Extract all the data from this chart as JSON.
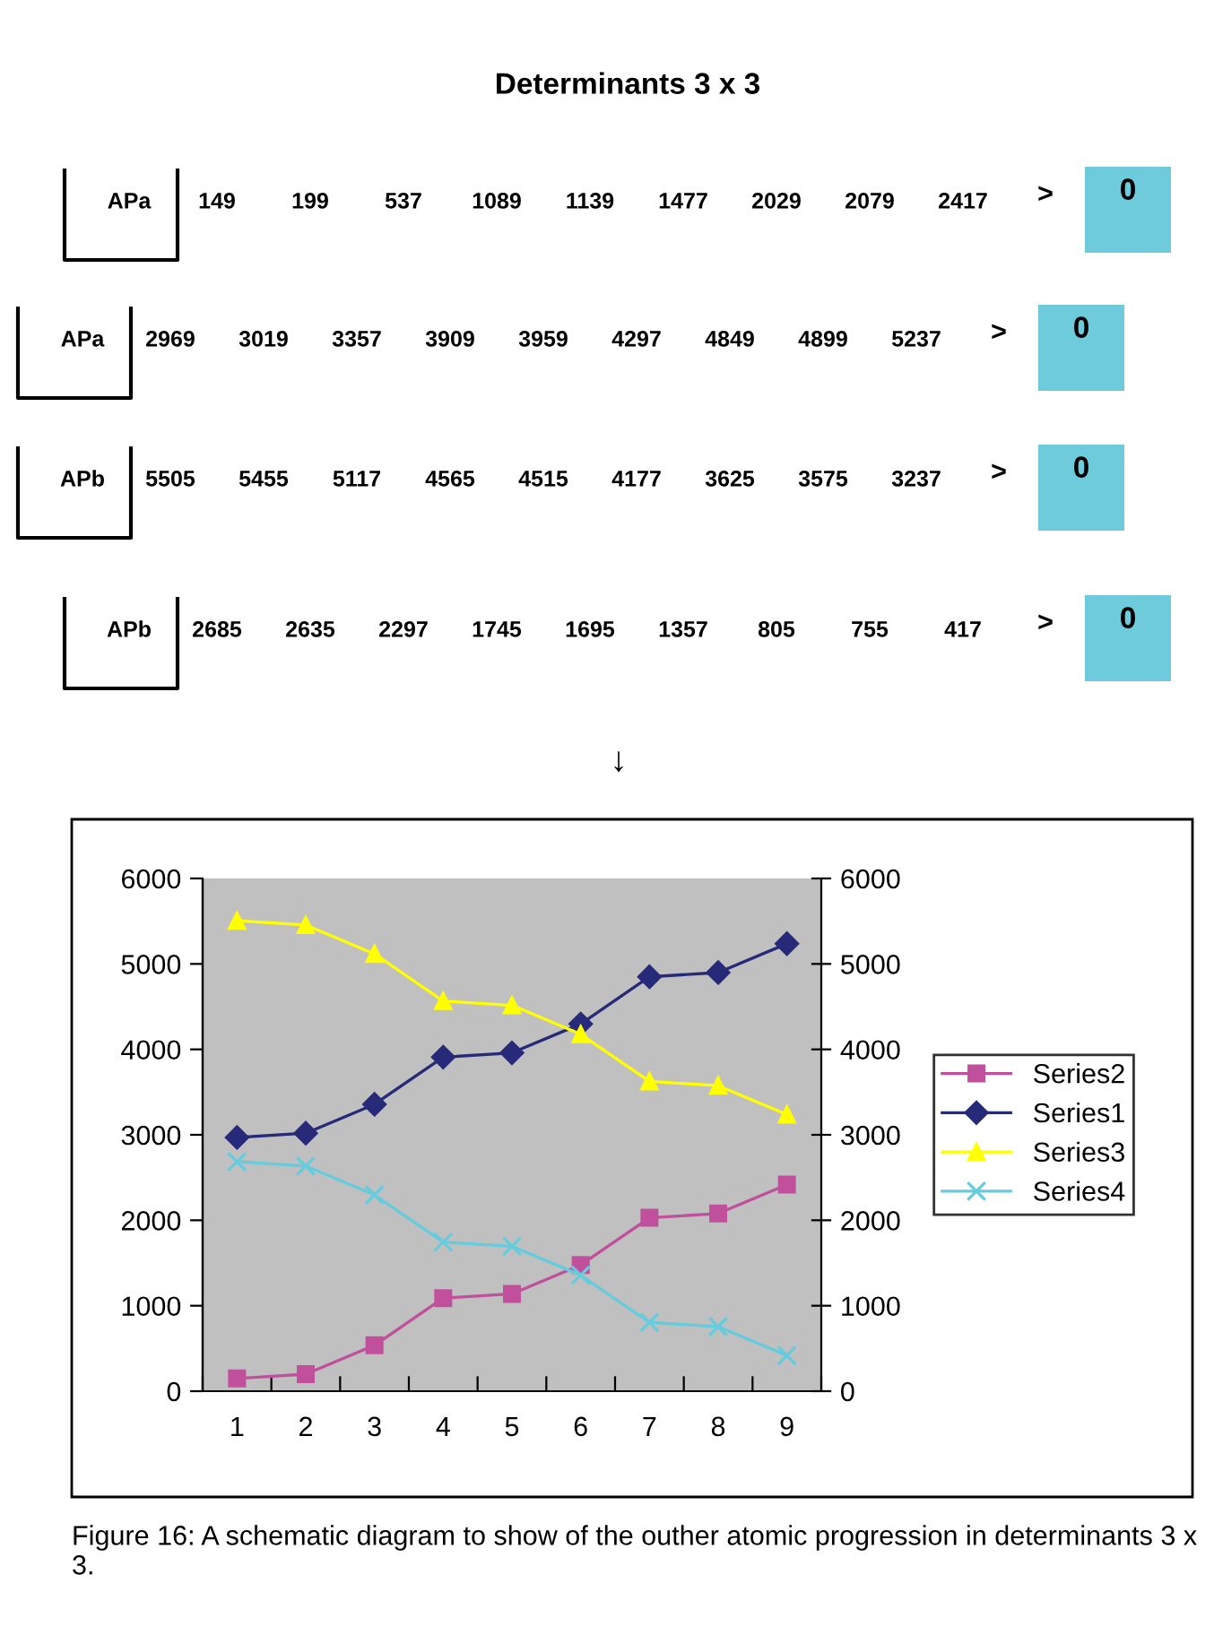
{
  "chart_data": {
    "type": "line",
    "title": "Determinants 3 x 3",
    "categories": [
      "1",
      "2",
      "3",
      "4",
      "5",
      "6",
      "7",
      "8",
      "9"
    ],
    "series": [
      {
        "name": "Series2",
        "color": "#c0509c",
        "marker": "square",
        "values": [
          149,
          199,
          537,
          1089,
          1139,
          1477,
          2029,
          2079,
          2417
        ]
      },
      {
        "name": "Series1",
        "color": "#262a78",
        "marker": "diamond",
        "values": [
          2969,
          3019,
          3357,
          3909,
          3959,
          4297,
          4849,
          4899,
          5237
        ]
      },
      {
        "name": "Series3",
        "color": "#ffff00",
        "marker": "triangle",
        "values": [
          5505,
          5455,
          5117,
          4565,
          4515,
          4177,
          3625,
          3575,
          3237
        ]
      },
      {
        "name": "Series4",
        "color": "#66ccdd",
        "marker": "cross",
        "values": [
          2685,
          2635,
          2297,
          1745,
          1695,
          1357,
          805,
          755,
          417
        ]
      }
    ],
    "ylim": [
      0,
      6000
    ],
    "yticks": [
      0,
      1000,
      2000,
      3000,
      4000,
      5000,
      6000
    ],
    "y2lim": [
      0,
      6000
    ],
    "y2ticks": [
      0,
      1000,
      2000,
      3000,
      4000,
      5000,
      6000
    ],
    "legend": "right",
    "grid": false,
    "annotations": [
      "APa 149 199 537 1089 1139 1477 2029 2079 2417 > 0",
      "APa 2969 3019 3357 3909 3959 4297 4849 4899 5237 > 0",
      "APb 5505 5455 5117 4565 4515 4177 3625 3575 3237 > 0",
      "APb 2685 2635 2297 1745 1695 1357 805 755 417 > 0",
      "↓",
      "Figure 16: A schematic diagram to show of the outher atomic progression in determinants 3 x 3."
    ]
  }
}
